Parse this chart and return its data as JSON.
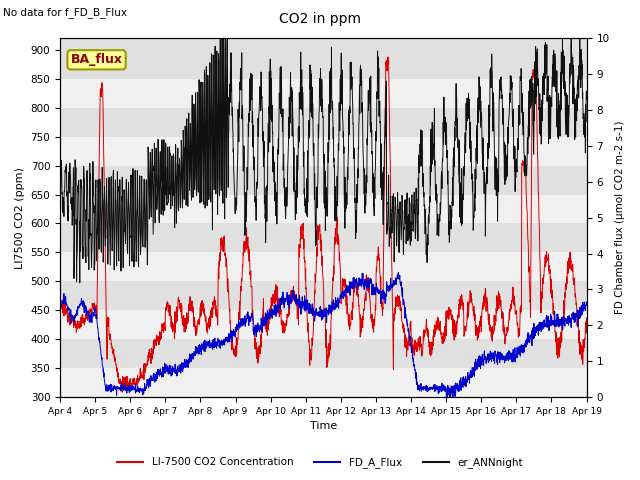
{
  "title": "CO2 in ppm",
  "top_left_text": "No data for f_FD_B_Flux",
  "annotation_box": "BA_flux",
  "xlabel": "Time",
  "ylabel_left": "LI7500 CO2 (ppm)",
  "ylabel_right": "FD Chamber flux (μmol CO2 m-2 s-1)",
  "ylim_left": [
    300,
    920
  ],
  "ylim_right": [
    0.0,
    10.0
  ],
  "yticks_left": [
    300,
    350,
    400,
    450,
    500,
    550,
    600,
    650,
    700,
    750,
    800,
    850,
    900
  ],
  "yticks_right": [
    0.0,
    1.0,
    2.0,
    3.0,
    4.0,
    5.0,
    6.0,
    7.0,
    8.0,
    9.0,
    10.0
  ],
  "n_days": 15,
  "color_red": "#dd0000",
  "color_blue": "#0000cc",
  "color_black": "#111111",
  "legend_labels": [
    "LI-7500 CO2 Concentration",
    "FD_A_Flux",
    "er_ANNnight"
  ],
  "background_gray": "#e0e0e0",
  "background_white": "#f0f0f0",
  "annotation_facecolor": "#ffff99",
  "annotation_edgecolor": "#999900",
  "xtick_labels": [
    "Apr 4",
    "Apr 5",
    "Apr 6",
    "Apr 7",
    "Apr 8",
    "Apr 9",
    "Apr 10",
    "Apr 11",
    "Apr 12",
    "Apr 13",
    "Apr 14",
    "Apr 15",
    "Apr 16",
    "Apr 17",
    "Apr 18",
    "Apr 19"
  ]
}
